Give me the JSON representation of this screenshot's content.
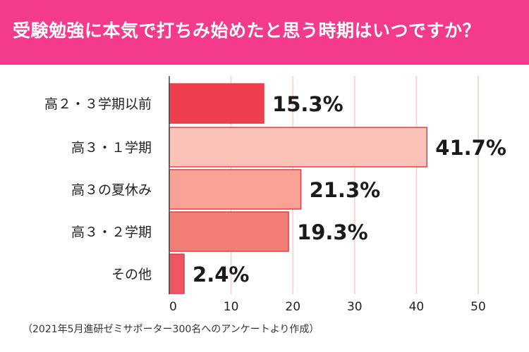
{
  "header": {
    "title": "受験勉強に本気で打ちみ始めたと思う時期はいつですか？",
    "background": "#f43a8a"
  },
  "footnote": "（2021年5月進研ゼミサポーター300名へのアンケートより作成）",
  "chart_data": {
    "type": "bar",
    "orientation": "horizontal",
    "categories": [
      "高２・３学期以前",
      "高３・１学期",
      "高３の夏休み",
      "高３・２学期",
      "その他"
    ],
    "values": [
      15.3,
      41.7,
      21.3,
      19.3,
      2.4
    ],
    "value_labels": [
      "15.3%",
      "41.7%",
      "21.3%",
      "19.3%",
      "2.4%"
    ],
    "bar_colors": [
      "#ef3f4e",
      "#fbc3b8",
      "#f7a294",
      "#f17f76",
      "#ee5560"
    ],
    "bar_stroke": "#e0404a",
    "gridline_color": "#f9d8cc",
    "xlim": [
      0,
      50
    ],
    "xticks": [
      0,
      10,
      20,
      30,
      40,
      50
    ],
    "grid": true,
    "title": "",
    "xlabel": "",
    "ylabel": ""
  }
}
